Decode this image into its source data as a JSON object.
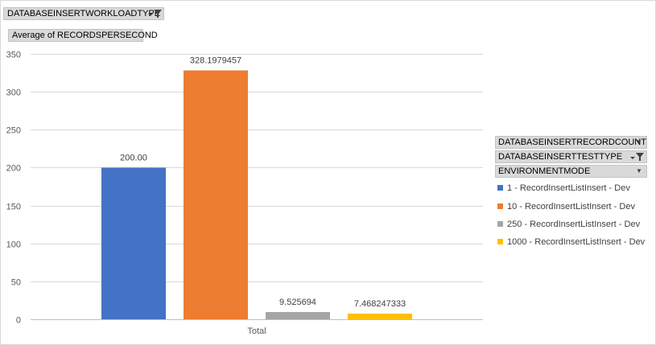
{
  "filter_field": {
    "label": "DATABASEINSERTWORKLOADTYPE"
  },
  "values_field": {
    "label": "Average of RECORDSPERSECOND"
  },
  "legend_fields": [
    {
      "label": "DATABASEINSERTRECORDCOUNT",
      "icon": "dropdown-icon"
    },
    {
      "label": "DATABASEINSERTTESTTYPE",
      "icon": "filter-dropdown-icon"
    },
    {
      "label": "ENVIRONMENTMODE",
      "icon": "dropdown-icon"
    }
  ],
  "chart_data": {
    "type": "bar",
    "categories": [
      "Total"
    ],
    "ylim": [
      0,
      350
    ],
    "yticks": [
      0,
      50,
      100,
      150,
      200,
      250,
      300,
      350
    ],
    "grid": true,
    "legend_position": "right",
    "series": [
      {
        "name": "1 - RecordInsertListInsert - Dev",
        "values": [
          200.0
        ],
        "data_label": "200.00",
        "color": "#4472c4"
      },
      {
        "name": "10 - RecordInsertListInsert - Dev",
        "values": [
          328.1979457
        ],
        "data_label": "328.1979457",
        "color": "#ed7d31"
      },
      {
        "name": "250 - RecordInsertListInsert - Dev",
        "values": [
          9.525694
        ],
        "data_label": "9.525694",
        "color": "#a5a5a5"
      },
      {
        "name": "1000 - RecordInsertListInsert - Dev",
        "values": [
          7.468247333
        ],
        "data_label": "7.468247333",
        "color": "#ffc000"
      }
    ]
  }
}
